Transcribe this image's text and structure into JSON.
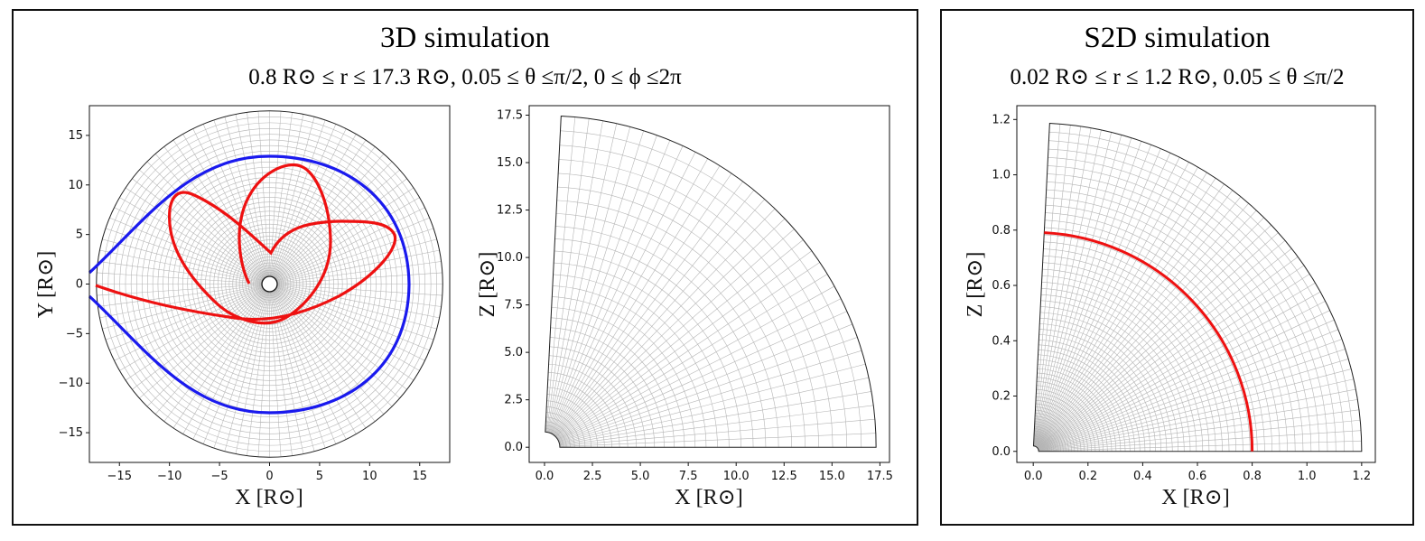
{
  "panels": {
    "sim3d": {
      "title": "3D simulation",
      "subtitle": "0.8 R⊙ ≤ r ≤ 17.3 R⊙, 0.05 ≤  θ  ≤π/2, 0 ≤  ϕ  ≤2π"
    },
    "s2d": {
      "title": "S2D simulation",
      "subtitle": "0.02 R⊙ ≤ r ≤ 1.2 R⊙, 0.05 ≤  θ  ≤π/2"
    }
  },
  "plots": {
    "xy": {
      "xlabel": "X [R⊙]",
      "ylabel": "Y [R⊙]",
      "xlim": [
        -18,
        18
      ],
      "ylim": [
        -18,
        18
      ],
      "xticks": [
        -15,
        -10,
        -5,
        0,
        5,
        10,
        15
      ],
      "yticks": [
        -15,
        -10,
        -5,
        0,
        5,
        10,
        15
      ],
      "xtick_labels": [
        "−15",
        "−10",
        "−5",
        "0",
        "5",
        "10",
        "15"
      ],
      "ytick_labels": [
        "−15",
        "−10",
        "−5",
        "0",
        "5",
        "10",
        "15"
      ],
      "r_inner": 0.8,
      "r_outer": 17.3,
      "blue_curve": "oval through (-18, 0) with extent x to 14, y ± 12.8",
      "red_curve": "multi-loop trajectory starting near (-1, 0)"
    },
    "xz": {
      "xlabel": "X [R⊙]",
      "ylabel": "Z [R⊙]",
      "xlim": [
        -0.8,
        18
      ],
      "ylim": [
        -0.8,
        18
      ],
      "xticks": [
        0,
        2.5,
        5,
        7.5,
        10,
        12.5,
        15,
        17.5
      ],
      "yticks": [
        0,
        2.5,
        5,
        7.5,
        10,
        12.5,
        15,
        17.5
      ],
      "xtick_labels": [
        "0.0",
        "2.5",
        "5.0",
        "7.5",
        "10.0",
        "12.5",
        "15.0",
        "17.5"
      ],
      "ytick_labels": [
        "0.0",
        "2.5",
        "5.0",
        "7.5",
        "10.0",
        "12.5",
        "15.0",
        "17.5"
      ],
      "r_inner": 0.8,
      "r_outer": 17.3,
      "theta_min": 0.05
    },
    "s2d": {
      "xlabel": "X [R⊙]",
      "ylabel": "Z [R⊙]",
      "xlim": [
        -0.06,
        1.25
      ],
      "ylim": [
        -0.04,
        1.25
      ],
      "xticks": [
        0,
        0.2,
        0.4,
        0.6,
        0.8,
        1.0,
        1.2
      ],
      "yticks": [
        0,
        0.2,
        0.4,
        0.6,
        0.8,
        1.0,
        1.2
      ],
      "xtick_labels": [
        "0.0",
        "0.2",
        "0.4",
        "0.6",
        "0.8",
        "1.0",
        "1.2"
      ],
      "ytick_labels": [
        "0.0",
        "0.2",
        "0.4",
        "0.6",
        "0.8",
        "1.0",
        "1.2"
      ],
      "r_inner": 0.02,
      "r_outer": 1.2,
      "theta_min": 0.05,
      "red_arc_radius": 0.8
    }
  },
  "colors": {
    "grid": "#b5b5b5",
    "blue": "#1a1aee",
    "red": "#ee1111",
    "frame": "#111111"
  }
}
